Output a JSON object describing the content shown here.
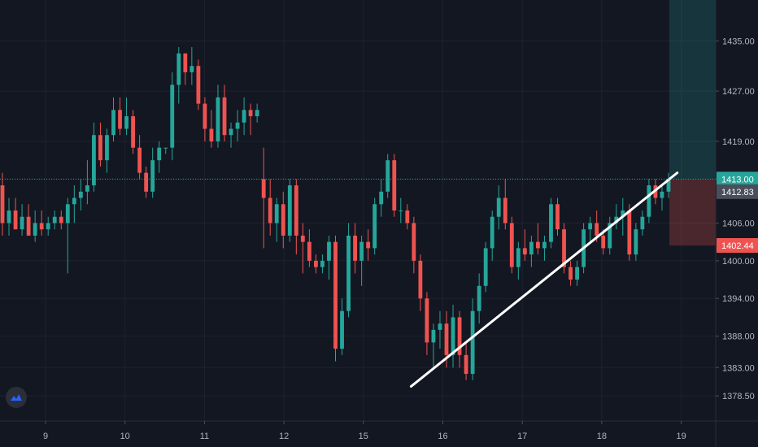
{
  "chart_data": {
    "type": "candlestick",
    "title": "",
    "xlabel": "",
    "ylabel": "",
    "ylim": [
      1374.5,
      1441.5
    ],
    "yticks": [
      "1378.50",
      "1383.00",
      "1388.00",
      "1394.00",
      "1400.00",
      "1406.00",
      "1413.00",
      "1419.00",
      "1427.00",
      "1435.00"
    ],
    "xticks": [
      "9",
      "10",
      "11",
      "12",
      "15",
      "16",
      "17",
      "18",
      "19"
    ],
    "current_price_line": 1413.0,
    "price_tags": [
      {
        "label": "1413.00",
        "value": 1413.0,
        "color": "#26a69a"
      },
      {
        "label": "1412.83",
        "value": 1411.0,
        "color": "#4a4e5a"
      },
      {
        "label": "1402.44",
        "value": 1402.44,
        "color": "#ef5350"
      }
    ],
    "position_tool": {
      "entry": 1413.0,
      "target": 1443.0,
      "stop": 1402.44
    },
    "trendline": {
      "x1": 15.6,
      "y1": 1380.0,
      "x2": 18.95,
      "y2": 1414.0
    },
    "colors": {
      "up": "#26a69a",
      "down": "#ef5350",
      "background": "#131722",
      "grid": "#1e222d",
      "trendline": "#ffffff"
    },
    "candles_note": "",
    "series": [
      {
        "name": "",
        "o_h_l_c": [
          [
            1412,
            1414,
            1404,
            1406
          ],
          [
            1406,
            1410,
            1404,
            1408
          ],
          [
            1408,
            1410,
            1405,
            1405
          ],
          [
            1405,
            1409,
            1404,
            1407
          ],
          [
            1407,
            1409,
            1404,
            1404
          ],
          [
            1404,
            1408,
            1403,
            1406
          ],
          [
            1406,
            1408,
            1404,
            1405
          ],
          [
            1405,
            1407,
            1404,
            1406
          ],
          [
            1406,
            1408,
            1405,
            1407
          ],
          [
            1407,
            1408,
            1405,
            1406
          ],
          [
            1406,
            1410,
            1398,
            1409
          ],
          [
            1409,
            1412,
            1406,
            1410
          ],
          [
            1410,
            1413,
            1408,
            1411
          ],
          [
            1411,
            1416,
            1409,
            1412
          ],
          [
            1412,
            1422,
            1411,
            1420
          ],
          [
            1420,
            1422,
            1415,
            1416
          ],
          [
            1416,
            1421,
            1414,
            1420
          ],
          [
            1420,
            1426,
            1419,
            1424
          ],
          [
            1424,
            1426,
            1420,
            1421
          ],
          [
            1421,
            1426,
            1420,
            1423
          ],
          [
            1423,
            1424,
            1417,
            1418
          ],
          [
            1418,
            1420,
            1413,
            1414
          ],
          [
            1414,
            1415,
            1410,
            1411
          ],
          [
            1411,
            1418,
            1410,
            1416
          ],
          [
            1416,
            1419,
            1414,
            1418
          ],
          [
            1418,
            1418,
            1417,
            1418
          ],
          [
            1418,
            1430,
            1416,
            1428
          ],
          [
            1428,
            1434,
            1425,
            1433
          ],
          [
            1433,
            1433,
            1428,
            1430
          ],
          [
            1430,
            1434,
            1428,
            1431
          ],
          [
            1431,
            1432,
            1424,
            1425
          ],
          [
            1425,
            1426,
            1419,
            1421
          ],
          [
            1421,
            1424,
            1418,
            1419
          ],
          [
            1419,
            1428,
            1418,
            1426
          ],
          [
            1426,
            1428,
            1419,
            1420
          ],
          [
            1420,
            1422,
            1418,
            1421
          ],
          [
            1421,
            1424,
            1419,
            1422
          ],
          [
            1422,
            1426,
            1420,
            1424
          ],
          [
            1424,
            1425,
            1420,
            1423
          ],
          [
            1423,
            1425,
            1422,
            1424
          ],
          [
            1413,
            1418,
            1402,
            1410
          ],
          [
            1410,
            1413,
            1404,
            1406
          ],
          [
            1406,
            1410,
            1403,
            1409
          ],
          [
            1409,
            1411,
            1402,
            1404
          ],
          [
            1404,
            1413,
            1403,
            1412
          ],
          [
            1412,
            1413,
            1401,
            1404
          ],
          [
            1404,
            1406,
            1398,
            1403
          ],
          [
            1403,
            1405,
            1399,
            1400
          ],
          [
            1400,
            1401,
            1398,
            1399
          ],
          [
            1399,
            1401,
            1398,
            1400
          ],
          [
            1400,
            1404,
            1397,
            1403
          ],
          [
            1403,
            1404,
            1384,
            1386
          ],
          [
            1386,
            1394,
            1385,
            1392
          ],
          [
            1392,
            1406,
            1391,
            1404
          ],
          [
            1404,
            1406,
            1398,
            1400
          ],
          [
            1400,
            1404,
            1396,
            1403
          ],
          [
            1403,
            1405,
            1400,
            1402
          ],
          [
            1402,
            1410,
            1401,
            1409
          ],
          [
            1409,
            1413,
            1407,
            1411
          ],
          [
            1411,
            1417,
            1410,
            1416
          ],
          [
            1416,
            1417,
            1407,
            1408
          ],
          [
            1408,
            1410,
            1406,
            1408
          ],
          [
            1408,
            1409,
            1405,
            1406
          ],
          [
            1406,
            1407,
            1398,
            1400
          ],
          [
            1400,
            1401,
            1392,
            1394
          ],
          [
            1394,
            1395,
            1385,
            1387
          ],
          [
            1387,
            1390,
            1383,
            1389
          ],
          [
            1389,
            1392,
            1386,
            1390
          ],
          [
            1390,
            1392,
            1383,
            1385
          ],
          [
            1385,
            1393,
            1383,
            1391
          ],
          [
            1391,
            1392,
            1383,
            1385
          ],
          [
            1385,
            1387,
            1381,
            1382
          ],
          [
            1382,
            1394,
            1381,
            1392
          ],
          [
            1392,
            1398,
            1390,
            1396
          ],
          [
            1396,
            1403,
            1395,
            1402
          ],
          [
            1402,
            1408,
            1400,
            1407
          ],
          [
            1407,
            1412,
            1405,
            1410
          ],
          [
            1410,
            1413,
            1405,
            1406
          ],
          [
            1406,
            1407,
            1398,
            1399
          ],
          [
            1399,
            1403,
            1397,
            1402
          ],
          [
            1402,
            1405,
            1400,
            1401
          ],
          [
            1401,
            1404,
            1399,
            1403
          ],
          [
            1403,
            1406,
            1401,
            1402
          ],
          [
            1402,
            1404,
            1400,
            1403
          ],
          [
            1403,
            1410,
            1402,
            1409
          ],
          [
            1409,
            1410,
            1404,
            1405
          ],
          [
            1405,
            1406,
            1398,
            1399
          ],
          [
            1399,
            1400,
            1396,
            1397
          ],
          [
            1397,
            1400,
            1396,
            1399
          ],
          [
            1399,
            1406,
            1398,
            1405
          ],
          [
            1405,
            1407,
            1403,
            1406
          ],
          [
            1406,
            1408,
            1403,
            1404
          ],
          [
            1404,
            1405,
            1401,
            1402
          ],
          [
            1402,
            1407,
            1401,
            1406
          ],
          [
            1406,
            1409,
            1405,
            1407
          ],
          [
            1407,
            1410,
            1404,
            1408
          ],
          [
            1408,
            1409,
            1400,
            1401
          ],
          [
            1401,
            1406,
            1400,
            1405
          ],
          [
            1405,
            1408,
            1404,
            1407
          ],
          [
            1407,
            1413,
            1406,
            1412
          ],
          [
            1412,
            1413,
            1409,
            1410
          ],
          [
            1410,
            1412,
            1408,
            1411
          ],
          [
            1411,
            1414,
            1410,
            1413
          ]
        ]
      }
    ]
  }
}
